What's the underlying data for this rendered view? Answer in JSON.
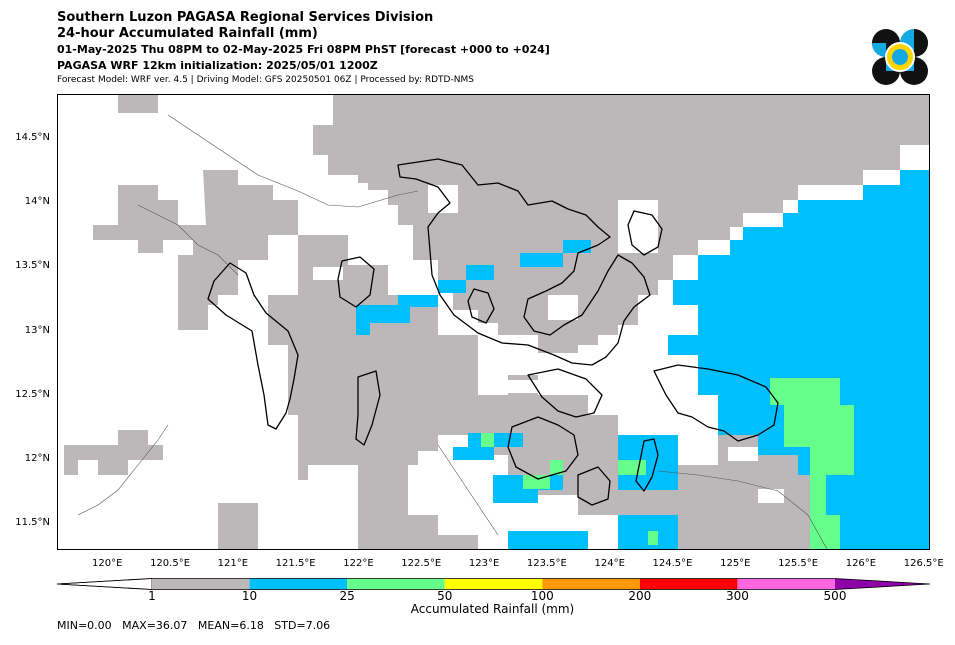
{
  "header": {
    "line1": "Southern Luzon PAGASA Regional Services Division",
    "line2": "24-hour Accumulated Rainfall (mm)",
    "line3": "01-May-2025 Thu 08PM to 02-May-2025 Fri 08PM PhST [forecast +000 to +024]",
    "line4": "PAGASA WRF 12km initialization: 2025/05/01 1200Z",
    "line5": "Forecast Model: WRF ver. 4.5 | Driving Model: GFS 20250501 06Z | Processed by: RDTD-NMS"
  },
  "logo": {
    "icon": "pagasa-seal-icon"
  },
  "map": {
    "extent": {
      "lon_min": 119.6,
      "lon_max": 126.55,
      "lat_min": 11.3,
      "lat_max": 14.85
    },
    "lat_labels": [
      {
        "value": 14.5,
        "label": "14.5°N"
      },
      {
        "value": 14.0,
        "label": "14°N"
      },
      {
        "value": 13.5,
        "label": "13.5°N"
      },
      {
        "value": 13.0,
        "label": "13°N"
      },
      {
        "value": 12.5,
        "label": "12.5°N"
      },
      {
        "value": 12.0,
        "label": "12°N"
      },
      {
        "value": 11.5,
        "label": "11.5°N"
      }
    ],
    "lon_labels": [
      {
        "value": 120.0,
        "label": "120°E"
      },
      {
        "value": 120.5,
        "label": "120.5°E"
      },
      {
        "value": 121.0,
        "label": "121°E"
      },
      {
        "value": 121.5,
        "label": "121.5°E"
      },
      {
        "value": 122.0,
        "label": "122°E"
      },
      {
        "value": 122.5,
        "label": "122.5°E"
      },
      {
        "value": 123.0,
        "label": "123°E"
      },
      {
        "value": 123.5,
        "label": "123.5°E"
      },
      {
        "value": 124.0,
        "label": "124°E"
      },
      {
        "value": 124.5,
        "label": "124.5°E"
      },
      {
        "value": 125.0,
        "label": "125°E"
      },
      {
        "value": 125.5,
        "label": "125.5°E"
      },
      {
        "value": 126.0,
        "label": "126°E"
      },
      {
        "value": 126.5,
        "label": "126.5°E"
      }
    ]
  },
  "colorbar": {
    "title": "Accumulated Rainfall (mm)",
    "under_color": "#ffffff",
    "over_color": "#7d00a0",
    "bins": [
      {
        "from": 1,
        "to": 10,
        "color": "#bcb8b9"
      },
      {
        "from": 10,
        "to": 25,
        "color": "#00bfff"
      },
      {
        "from": 25,
        "to": 50,
        "color": "#66ff8c"
      },
      {
        "from": 50,
        "to": 100,
        "color": "#ffff00"
      },
      {
        "from": 100,
        "to": 200,
        "color": "#ff9900"
      },
      {
        "from": 200,
        "to": 300,
        "color": "#ff0000"
      },
      {
        "from": 300,
        "to": 500,
        "color": "#ff66e0"
      },
      {
        "from": 500,
        "to": null,
        "color": "#8e00a8"
      }
    ],
    "tick_labels": [
      "1",
      "10",
      "25",
      "50",
      "100",
      "200",
      "300",
      "500"
    ]
  },
  "stats": {
    "text": "MIN=0.00   MAX=36.07   MEAN=6.18   STD=7.06"
  }
}
